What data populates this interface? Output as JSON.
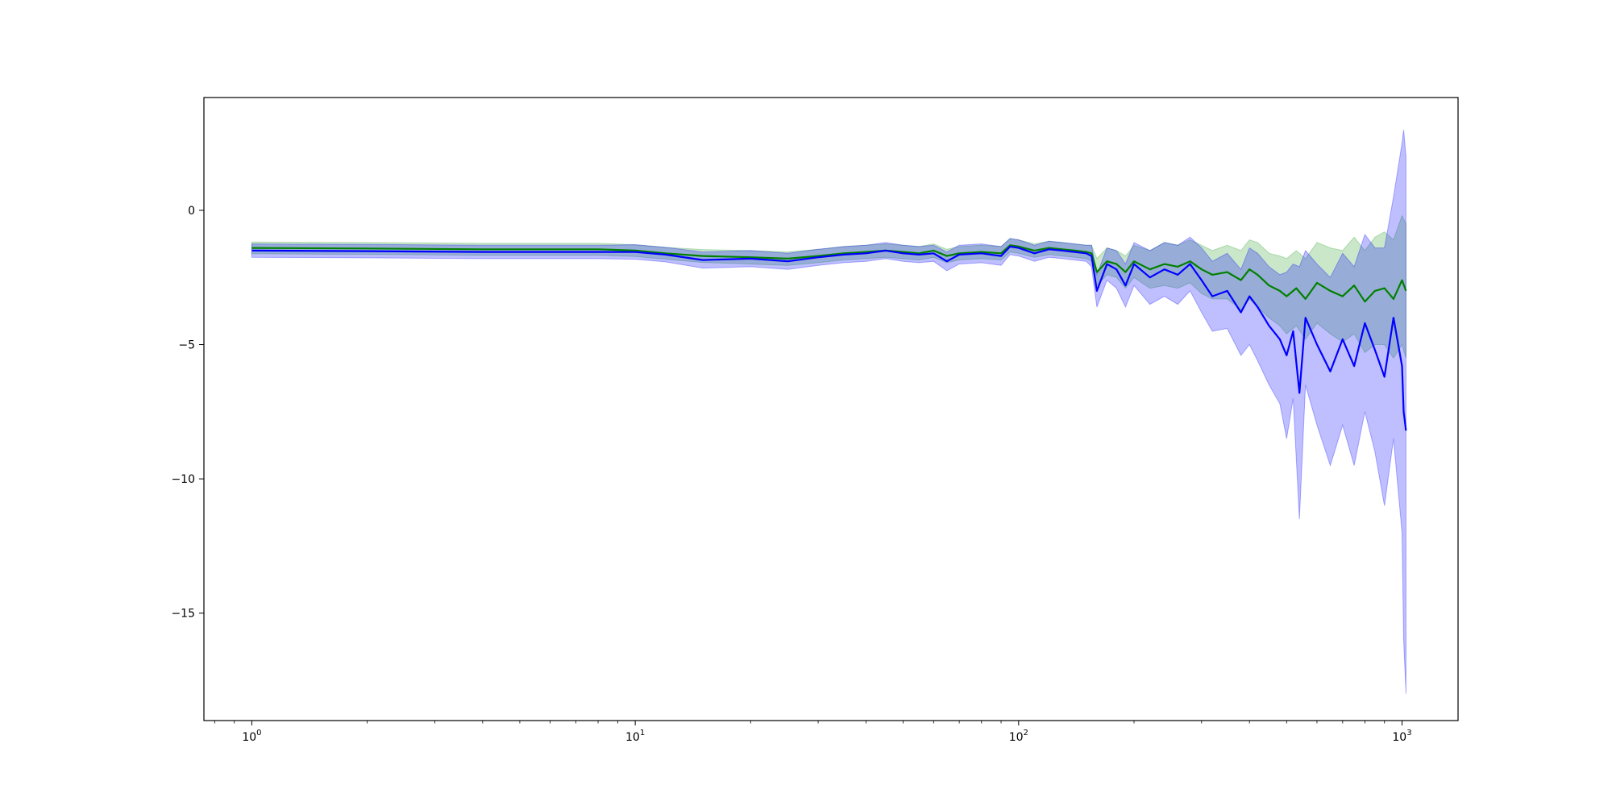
{
  "chart_data": {
    "type": "line",
    "title": "",
    "xlabel": "",
    "ylabel": "",
    "xscale": "log",
    "xlim": [
      0.75,
      1400
    ],
    "ylim": [
      -19,
      4.2
    ],
    "grid": false,
    "legend": "none",
    "x_ticks": [
      {
        "value": 1,
        "base": "10",
        "exp": "0"
      },
      {
        "value": 10,
        "base": "10",
        "exp": "1"
      },
      {
        "value": 100,
        "base": "10",
        "exp": "2"
      },
      {
        "value": 1000,
        "base": "10",
        "exp": "3"
      }
    ],
    "y_ticks": [
      {
        "value": 0,
        "label": "0"
      },
      {
        "value": -5,
        "label": "−5"
      },
      {
        "value": -10,
        "label": "−10"
      },
      {
        "value": -15,
        "label": "−15"
      }
    ],
    "series": [
      {
        "color": "#008000",
        "band_color": "#2ca02c",
        "x": [
          1,
          2,
          4,
          8,
          10,
          12,
          15,
          20,
          25,
          30,
          35,
          40,
          45,
          50,
          55,
          60,
          65,
          70,
          80,
          90,
          95,
          100,
          110,
          120,
          130,
          140,
          150,
          155,
          160,
          170,
          180,
          190,
          200,
          220,
          240,
          260,
          280,
          300,
          320,
          350,
          380,
          400,
          420,
          450,
          480,
          500,
          530,
          560,
          600,
          650,
          700,
          750,
          800,
          850,
          900,
          950,
          1000,
          1024
        ],
        "y": [
          -1.4,
          -1.42,
          -1.45,
          -1.45,
          -1.5,
          -1.6,
          -1.7,
          -1.75,
          -1.8,
          -1.7,
          -1.6,
          -1.55,
          -1.5,
          -1.55,
          -1.6,
          -1.5,
          -1.7,
          -1.6,
          -1.55,
          -1.6,
          -1.3,
          -1.35,
          -1.5,
          -1.4,
          -1.45,
          -1.5,
          -1.55,
          -1.6,
          -2.3,
          -1.9,
          -2.0,
          -2.3,
          -1.9,
          -2.2,
          -2.0,
          -2.1,
          -1.9,
          -2.2,
          -2.4,
          -2.3,
          -2.6,
          -2.2,
          -2.4,
          -2.8,
          -3.0,
          -3.2,
          -2.9,
          -3.3,
          -2.7,
          -3.0,
          -3.2,
          -2.8,
          -3.4,
          -3.0,
          -2.9,
          -3.3,
          -2.6,
          -3.0
        ],
        "lower": [
          -1.62,
          -1.64,
          -1.67,
          -1.67,
          -1.72,
          -1.82,
          -1.94,
          -2.0,
          -2.05,
          -1.95,
          -1.85,
          -1.8,
          -1.75,
          -1.8,
          -1.85,
          -1.75,
          -1.95,
          -1.85,
          -1.8,
          -1.85,
          -1.55,
          -1.6,
          -1.75,
          -1.65,
          -1.7,
          -1.75,
          -1.8,
          -1.9,
          -2.8,
          -2.4,
          -2.5,
          -2.9,
          -2.5,
          -2.9,
          -2.8,
          -2.9,
          -2.7,
          -3.1,
          -3.3,
          -3.3,
          -3.7,
          -3.3,
          -3.6,
          -4.0,
          -4.3,
          -4.6,
          -4.3,
          -4.8,
          -4.2,
          -4.6,
          -4.9,
          -4.6,
          -5.3,
          -5.0,
          -5.0,
          -5.5,
          -5.0,
          -5.5
        ],
        "upper": [
          -1.18,
          -1.2,
          -1.23,
          -1.23,
          -1.28,
          -1.38,
          -1.46,
          -1.5,
          -1.55,
          -1.45,
          -1.35,
          -1.3,
          -1.25,
          -1.3,
          -1.35,
          -1.25,
          -1.45,
          -1.35,
          -1.3,
          -1.35,
          -1.05,
          -1.1,
          -1.25,
          -1.15,
          -1.2,
          -1.25,
          -1.3,
          -1.3,
          -1.8,
          -1.4,
          -1.5,
          -1.7,
          -1.3,
          -1.5,
          -1.2,
          -1.3,
          -1.1,
          -1.3,
          -1.5,
          -1.3,
          -1.5,
          -1.1,
          -1.2,
          -1.6,
          -1.7,
          -1.8,
          -1.5,
          -1.8,
          -1.2,
          -1.4,
          -1.5,
          -1.0,
          -1.5,
          -1.0,
          -0.8,
          -1.1,
          -0.2,
          -0.5
        ]
      },
      {
        "color": "#0000ff",
        "band_color": "#0000ff",
        "x": [
          1,
          2,
          4,
          8,
          10,
          12,
          15,
          20,
          25,
          30,
          35,
          40,
          45,
          50,
          55,
          60,
          65,
          70,
          80,
          90,
          95,
          100,
          110,
          120,
          130,
          140,
          150,
          155,
          160,
          170,
          180,
          190,
          200,
          220,
          240,
          260,
          280,
          300,
          320,
          350,
          380,
          400,
          420,
          450,
          480,
          500,
          520,
          540,
          560,
          600,
          650,
          700,
          750,
          800,
          850,
          900,
          950,
          1000,
          1010,
          1024
        ],
        "y": [
          -1.5,
          -1.52,
          -1.55,
          -1.55,
          -1.55,
          -1.65,
          -1.85,
          -1.8,
          -1.9,
          -1.75,
          -1.65,
          -1.6,
          -1.5,
          -1.6,
          -1.65,
          -1.6,
          -1.9,
          -1.65,
          -1.6,
          -1.7,
          -1.35,
          -1.4,
          -1.6,
          -1.45,
          -1.5,
          -1.55,
          -1.6,
          -1.7,
          -3.0,
          -2.0,
          -2.2,
          -2.8,
          -2.0,
          -2.5,
          -2.2,
          -2.4,
          -2.0,
          -2.6,
          -3.2,
          -3.0,
          -3.8,
          -3.2,
          -3.6,
          -4.3,
          -4.8,
          -5.4,
          -4.5,
          -6.8,
          -4.0,
          -5.0,
          -6.0,
          -4.8,
          -5.8,
          -4.2,
          -5.2,
          -6.2,
          -4.0,
          -5.8,
          -7.5,
          -8.2
        ],
        "lower": [
          -1.75,
          -1.77,
          -1.8,
          -1.8,
          -1.82,
          -1.92,
          -2.15,
          -2.1,
          -2.2,
          -2.05,
          -1.95,
          -1.9,
          -1.8,
          -1.9,
          -1.95,
          -1.9,
          -2.25,
          -2.0,
          -1.95,
          -2.05,
          -1.65,
          -1.7,
          -1.9,
          -1.75,
          -1.8,
          -1.85,
          -1.9,
          -2.1,
          -3.6,
          -2.6,
          -2.9,
          -3.6,
          -2.8,
          -3.5,
          -3.2,
          -3.5,
          -3.0,
          -3.8,
          -4.5,
          -4.4,
          -5.4,
          -5.0,
          -5.6,
          -6.5,
          -7.2,
          -8.5,
          -7.0,
          -11.5,
          -6.5,
          -8.0,
          -9.5,
          -8.0,
          -9.5,
          -7.5,
          -9.0,
          -11.0,
          -8.5,
          -12.0,
          -16.0,
          -18.0
        ],
        "upper": [
          -1.25,
          -1.27,
          -1.3,
          -1.3,
          -1.28,
          -1.38,
          -1.55,
          -1.5,
          -1.6,
          -1.45,
          -1.35,
          -1.3,
          -1.2,
          -1.3,
          -1.35,
          -1.3,
          -1.55,
          -1.3,
          -1.25,
          -1.35,
          -1.05,
          -1.1,
          -1.3,
          -1.15,
          -1.2,
          -1.25,
          -1.3,
          -1.3,
          -2.4,
          -1.4,
          -1.5,
          -2.0,
          -1.2,
          -1.5,
          -1.2,
          -1.3,
          -1.0,
          -1.4,
          -1.9,
          -1.6,
          -2.2,
          -1.4,
          -1.6,
          -2.1,
          -2.4,
          -2.3,
          -2.0,
          -2.1,
          -1.5,
          -2.0,
          -2.5,
          -1.6,
          -2.1,
          -0.9,
          -1.4,
          -1.4,
          0.5,
          2.5,
          3.0,
          2.0
        ]
      }
    ]
  }
}
